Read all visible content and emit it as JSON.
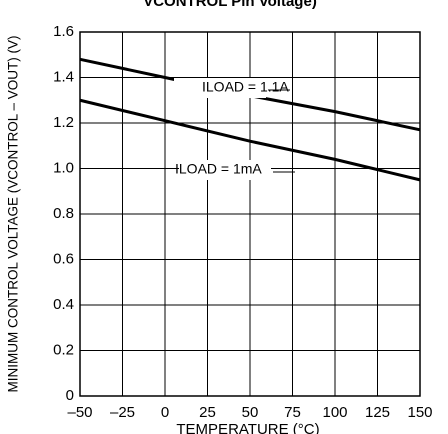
{
  "chart_data": {
    "type": "line",
    "title": "VCONTROL Pin Voltage)",
    "xlabel": "TEMPERATURE (°C)",
    "ylabel": "MINIMUM CONTROL VOLTAGE (VCONTROL – VOUT) (V)",
    "x": [
      -50,
      0,
      50,
      100,
      150
    ],
    "series": [
      {
        "name": "ILOAD = 1.1A",
        "color": "#000000",
        "values": [
          1.48,
          1.4,
          1.32,
          1.25,
          1.17
        ]
      },
      {
        "name": "ILOAD = 1mA",
        "color": "#000000",
        "values": [
          1.3,
          1.21,
          1.12,
          1.04,
          0.95
        ]
      }
    ],
    "xlim": [
      -50,
      150
    ],
    "xticks": [
      {
        "value": -50,
        "label": "–50"
      },
      {
        "value": -25,
        "label": "–25"
      },
      0,
      25,
      50,
      75,
      100,
      125,
      150
    ],
    "ylim": [
      0,
      1.6
    ],
    "yticks": [
      0,
      0.2,
      0.4,
      0.6,
      0.8,
      {
        "value": 1.0,
        "label": "1.0"
      },
      1.2,
      1.4,
      1.6
    ],
    "grid": true
  }
}
